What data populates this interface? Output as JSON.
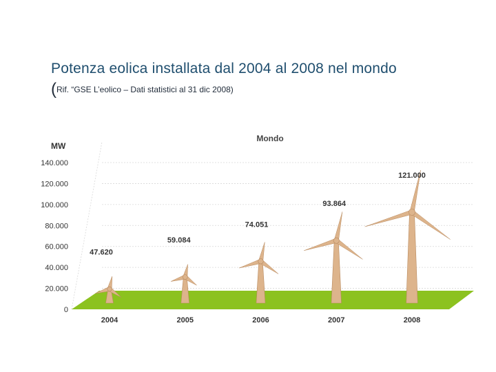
{
  "slide": {
    "title": "Potenza eolica installata dal 2004 al 2008 nel mondo",
    "subtitle_paren": "(",
    "subtitle_text": "Rif. “GSE L’eolico – Dati statistici al 31 dic 2008)"
  },
  "chart_data": {
    "type": "bar",
    "title": "Mondo",
    "ylabel": "MW",
    "xlabel": "",
    "categories": [
      "2004",
      "2005",
      "2006",
      "2007",
      "2008"
    ],
    "values": [
      47620,
      59084,
      74051,
      93864,
      121000
    ],
    "data_labels": [
      "47.620",
      "59.084",
      "74.051",
      "93.864",
      "121.000"
    ],
    "ylim": [
      0,
      140000
    ],
    "yticks": [
      0,
      20000,
      40000,
      60000,
      80000,
      100000,
      120000,
      140000
    ],
    "ytick_labels": [
      "0",
      "20.000",
      "40.000",
      "60.000",
      "80.000",
      "100.000",
      "120.000",
      "140.000"
    ],
    "grid": true,
    "mark_style": "wind turbines",
    "colors": {
      "floor": "#8cc21f",
      "turbine": "#ddb48c",
      "turbine_dark": "#b88a5f",
      "grid": "#d8d8d8",
      "labels": "#333333"
    }
  }
}
